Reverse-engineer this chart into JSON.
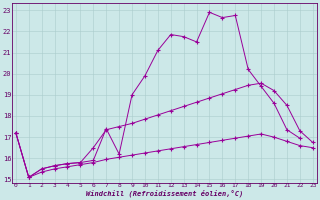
{
  "xlabel": "Windchill (Refroidissement éolien,°C)",
  "background_color": "#cce8e8",
  "grid_color": "#aacccc",
  "line_color": "#990099",
  "xlim": [
    -0.3,
    23.3
  ],
  "ylim": [
    14.85,
    23.35
  ],
  "yticks": [
    15,
    16,
    17,
    18,
    19,
    20,
    21,
    22,
    23
  ],
  "xticks": [
    0,
    1,
    2,
    3,
    4,
    5,
    6,
    7,
    8,
    9,
    10,
    11,
    12,
    13,
    14,
    15,
    16,
    17,
    18,
    19,
    20,
    21,
    22,
    23
  ],
  "series1_x": [
    0,
    1,
    2,
    3,
    4,
    5,
    6,
    7,
    8,
    9,
    10,
    11,
    12,
    13,
    14,
    15,
    16,
    17,
    18,
    19,
    20,
    21,
    22
  ],
  "series1_y": [
    17.2,
    15.1,
    15.5,
    15.65,
    15.75,
    15.8,
    15.9,
    17.4,
    16.2,
    19.0,
    19.9,
    21.1,
    21.85,
    21.75,
    21.5,
    22.9,
    22.65,
    22.75,
    20.2,
    19.4,
    18.6,
    17.35,
    16.95
  ],
  "series2_x": [
    0,
    1,
    2,
    3,
    4,
    5,
    6,
    7,
    8,
    9,
    10,
    11,
    12,
    13,
    14,
    15,
    16,
    17,
    18,
    19,
    20,
    21,
    22,
    23
  ],
  "series2_y": [
    17.2,
    15.1,
    15.5,
    15.65,
    15.75,
    15.8,
    16.5,
    17.35,
    17.5,
    17.65,
    17.85,
    18.05,
    18.25,
    18.45,
    18.65,
    18.85,
    19.05,
    19.25,
    19.45,
    19.55,
    19.2,
    18.5,
    17.3,
    16.75
  ],
  "series3_x": [
    0,
    1,
    2,
    3,
    4,
    5,
    6,
    7,
    8,
    9,
    10,
    11,
    12,
    13,
    14,
    15,
    16,
    17,
    18,
    19,
    20,
    21,
    22,
    23
  ],
  "series3_y": [
    17.2,
    15.1,
    15.35,
    15.5,
    15.6,
    15.7,
    15.8,
    15.95,
    16.05,
    16.15,
    16.25,
    16.35,
    16.45,
    16.55,
    16.65,
    16.75,
    16.85,
    16.95,
    17.05,
    17.15,
    17.0,
    16.8,
    16.6,
    16.5
  ]
}
